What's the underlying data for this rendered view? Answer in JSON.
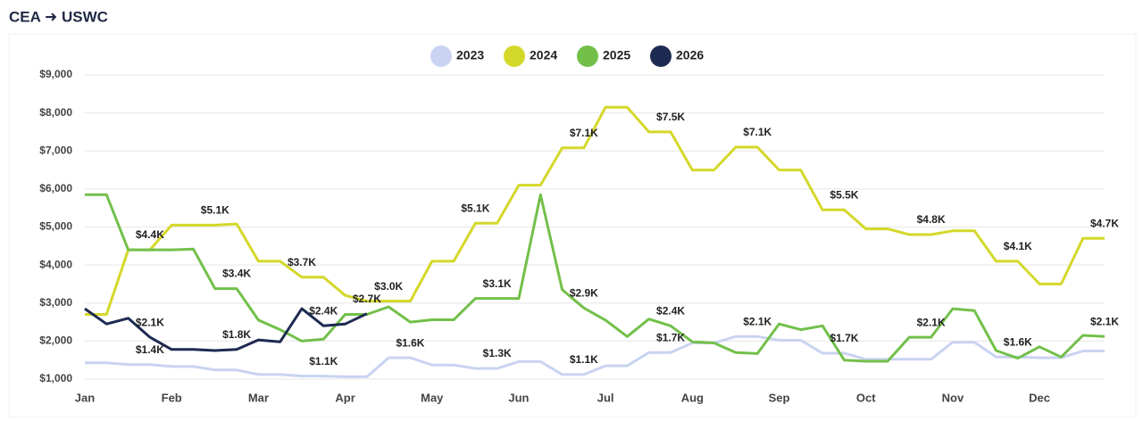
{
  "chart_data": {
    "type": "line",
    "title": "CEA ➜ USWC",
    "categories": [
      "Jan",
      null,
      null,
      null,
      "Feb",
      null,
      null,
      null,
      "Mar",
      null,
      null,
      null,
      "Apr",
      null,
      null,
      null,
      "May",
      null,
      null,
      null,
      "Jun",
      null,
      null,
      null,
      "Jul",
      null,
      null,
      null,
      "Aug",
      null,
      null,
      null,
      "Sep",
      null,
      null,
      null,
      "Oct",
      null,
      null,
      null,
      "Nov",
      null,
      null,
      null,
      "Dec",
      null,
      null,
      null
    ],
    "ylim": [
      1000,
      9000
    ],
    "yticks": [
      {
        "value": 1000,
        "label": "$1,000"
      },
      {
        "value": 2000,
        "label": "$2,000"
      },
      {
        "value": 3000,
        "label": "$3,000"
      },
      {
        "value": 4000,
        "label": "$4,000"
      },
      {
        "value": 5000,
        "label": "$5,000"
      },
      {
        "value": 6000,
        "label": "$6,000"
      },
      {
        "value": 7000,
        "label": "$7,000"
      },
      {
        "value": 8000,
        "label": "$8,000"
      },
      {
        "value": 9000,
        "label": "$9,000"
      }
    ],
    "grid": true,
    "series": [
      {
        "name": "2023",
        "color": "#c9d3f2",
        "values": [
          1430,
          1430,
          1380,
          1380,
          1330,
          1330,
          1240,
          1240,
          1120,
          1120,
          1080,
          1080,
          1060,
          1060,
          1560,
          1560,
          1370,
          1370,
          1280,
          1280,
          1460,
          1460,
          1120,
          1120,
          1350,
          1350,
          1700,
          1700,
          1950,
          1950,
          2120,
          2120,
          2020,
          2020,
          1680,
          1680,
          1520,
          1520,
          1520,
          1520,
          1970,
          1970,
          1580,
          1580,
          1560,
          1560,
          1740,
          1740
        ],
        "value_labels": [
          null,
          null,
          null,
          "$1.4K",
          null,
          null,
          null,
          null,
          null,
          null,
          null,
          "$1.1K",
          null,
          null,
          null,
          "$1.6K",
          null,
          null,
          null,
          "$1.3K",
          null,
          null,
          null,
          "$1.1K",
          null,
          null,
          null,
          "$1.7K",
          null,
          null,
          null,
          "$2.1K",
          null,
          null,
          null,
          "$1.7K",
          null,
          null,
          null,
          null,
          null,
          null,
          null,
          "$1.6K",
          null,
          null,
          null,
          null
        ]
      },
      {
        "name": "2024",
        "color": "#d4d829",
        "values": [
          2700,
          2700,
          4400,
          4400,
          5050,
          5050,
          5050,
          5080,
          4100,
          4100,
          3680,
          3680,
          3200,
          3050,
          3050,
          3050,
          4100,
          4100,
          5100,
          5100,
          6100,
          6100,
          7080,
          7080,
          8150,
          8150,
          7500,
          7500,
          6500,
          6500,
          7100,
          7100,
          6500,
          6500,
          5450,
          5450,
          4950,
          4950,
          4800,
          4800,
          4900,
          4900,
          4100,
          4100,
          3500,
          3500,
          4700,
          4700
        ],
        "value_labels": [
          null,
          null,
          null,
          "$4.4K",
          null,
          null,
          "$5.1K",
          null,
          null,
          null,
          "$3.7K",
          null,
          null,
          null,
          "$3.0K",
          null,
          null,
          null,
          "$5.1K",
          null,
          null,
          null,
          null,
          "$7.1K",
          null,
          null,
          null,
          "$7.5K",
          null,
          null,
          null,
          "$7.1K",
          null,
          null,
          null,
          "$5.5K",
          null,
          null,
          null,
          "$4.8K",
          null,
          null,
          null,
          "$4.1K",
          null,
          null,
          null,
          "$4.7K"
        ]
      },
      {
        "name": "2025",
        "color": "#72c04a",
        "values": [
          5850,
          5850,
          4400,
          4400,
          4400,
          4420,
          3380,
          3380,
          2550,
          2300,
          2000,
          2050,
          2700,
          2700,
          2900,
          2500,
          2560,
          2560,
          3120,
          3120,
          3120,
          5850,
          3350,
          2870,
          2550,
          2120,
          2580,
          2400,
          1980,
          1950,
          1700,
          1670,
          2450,
          2300,
          2400,
          1500,
          1470,
          1470,
          2100,
          2100,
          2850,
          2800,
          1750,
          1550,
          1850,
          1580,
          2150,
          2120
        ],
        "value_labels": [
          null,
          null,
          null,
          null,
          null,
          null,
          null,
          "$3.4K",
          null,
          null,
          null,
          null,
          null,
          null,
          null,
          null,
          null,
          null,
          null,
          "$3.1K",
          null,
          null,
          null,
          "$2.9K",
          null,
          null,
          null,
          "$2.4K",
          null,
          null,
          null,
          null,
          null,
          null,
          null,
          null,
          null,
          null,
          null,
          "$2.1K",
          null,
          null,
          null,
          null,
          null,
          null,
          null,
          "$2.1K"
        ]
      },
      {
        "name": "2026",
        "color": "#1e2a52",
        "values": [
          2850,
          2450,
          2600,
          2100,
          1780,
          1780,
          1750,
          1780,
          2030,
          1980,
          2850,
          2400,
          2450,
          2720,
          null,
          null,
          null,
          null,
          null,
          null,
          null,
          null,
          null,
          null,
          null,
          null,
          null,
          null,
          null,
          null,
          null,
          null,
          null,
          null,
          null,
          null,
          null,
          null,
          null,
          null,
          null,
          null,
          null,
          null,
          null,
          null,
          null,
          null
        ],
        "value_labels": [
          null,
          null,
          null,
          "$2.1K",
          null,
          null,
          null,
          "$1.8K",
          null,
          null,
          null,
          "$2.4K",
          null,
          "$2.7K",
          null,
          null,
          null,
          null,
          null,
          null,
          null,
          null,
          null,
          null,
          null,
          null,
          null,
          null,
          null,
          null,
          null,
          null,
          null,
          null,
          null,
          null,
          null,
          null,
          null,
          null,
          null,
          null,
          null,
          null,
          null,
          null,
          null,
          null
        ]
      }
    ]
  }
}
